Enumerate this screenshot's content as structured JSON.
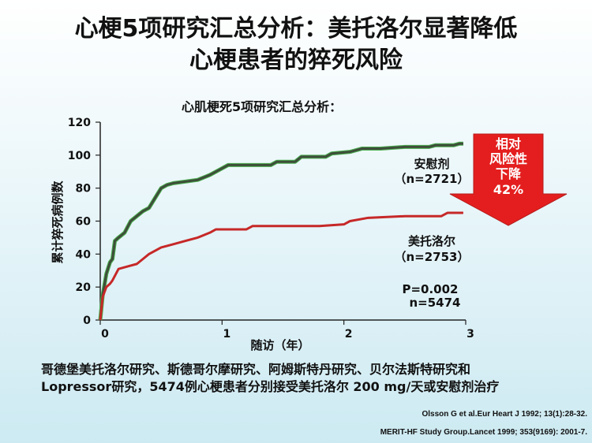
{
  "slide": {
    "title_line1": "心梗5项研究汇总分析：美托洛尔显著降低",
    "title_line2": "心梗患者的猝死风险",
    "footnote_line1": "哥德堡美托洛尔研究、斯德哥尔摩研究、阿姆斯特丹研究、贝尔法斯特研究和",
    "footnote_line2": "Lopressor研究，5474例心梗患者分别接受美托洛尔 200 mg/天或安慰剂治疗",
    "ref1": "Olsson G et al.Eur Heart J 1992; 13(1):28-32.",
    "ref2": "MERIT-HF Study Group.Lancet 1999; 353(9169): 2001-7."
  },
  "chart_data": {
    "type": "line",
    "title": "心肌梗死5项研究汇总分析：",
    "xlabel": "随访（年）",
    "ylabel": "累计猝死病例数",
    "xlim": [
      0,
      3
    ],
    "ylim": [
      0,
      120
    ],
    "xticks": [
      0,
      1,
      2,
      3
    ],
    "yticks": [
      0,
      20,
      40,
      60,
      80,
      100,
      120
    ],
    "series": [
      {
        "name": "安慰剂",
        "label_line1": "安慰剂",
        "label_line2": "（n=2721）",
        "color": "#3e4e3a",
        "edge_color": "#4caf50",
        "x": [
          0.0,
          0.02,
          0.05,
          0.08,
          0.1,
          0.12,
          0.15,
          0.2,
          0.25,
          0.3,
          0.35,
          0.4,
          0.45,
          0.5,
          0.55,
          0.6,
          0.7,
          0.8,
          0.9,
          1.0,
          1.05,
          1.2,
          1.4,
          1.45,
          1.6,
          1.65,
          1.85,
          1.9,
          2.05,
          2.15,
          2.3,
          2.5,
          2.7,
          2.75,
          2.9,
          2.95,
          2.98
        ],
        "y": [
          0,
          15,
          28,
          35,
          37,
          48,
          50,
          53,
          60,
          63,
          66,
          68,
          74,
          80,
          82,
          83,
          84,
          85,
          88,
          92,
          94,
          94,
          94,
          96,
          96,
          99,
          99,
          101,
          102,
          104,
          104,
          105,
          105,
          106,
          106,
          107,
          107
        ]
      },
      {
        "name": "美托洛尔",
        "label_line1": "美托洛尔",
        "label_line2": "（n=2753）",
        "color": "#c62828",
        "x": [
          0.0,
          0.02,
          0.05,
          0.08,
          0.1,
          0.15,
          0.25,
          0.3,
          0.35,
          0.4,
          0.5,
          0.6,
          0.7,
          0.8,
          0.9,
          0.95,
          1.2,
          1.25,
          1.8,
          2.0,
          2.05,
          2.2,
          2.5,
          2.8,
          2.85,
          2.98
        ],
        "y": [
          0,
          14,
          20,
          22,
          24,
          31,
          33,
          34,
          37,
          40,
          44,
          46,
          48,
          50,
          53,
          55,
          55,
          57,
          57,
          58,
          60,
          62,
          63,
          63,
          65,
          65
        ]
      }
    ],
    "annotations": {
      "p_value": "P=0.002",
      "n_total": "n=5474",
      "arrow_line1": "相对",
      "arrow_line2": "风险性",
      "arrow_line3": "下降",
      "arrow_line4": "42%"
    }
  }
}
